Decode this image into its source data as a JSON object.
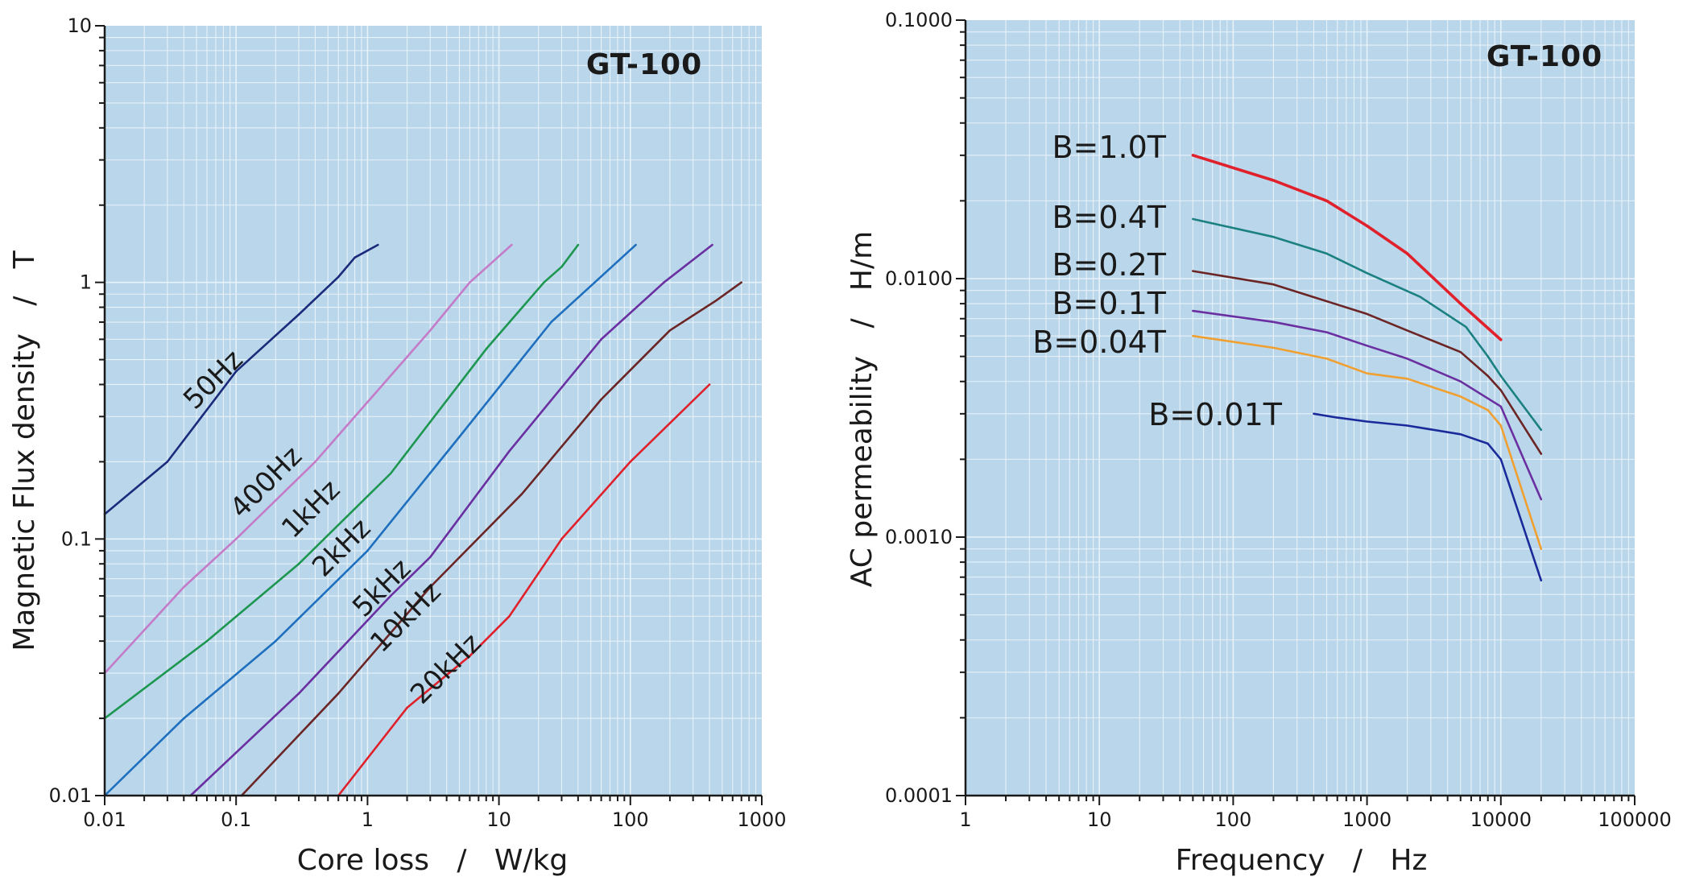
{
  "chart_data": [
    {
      "type": "line",
      "title": "GT-100",
      "xlabel": "Core loss   /   W/kg",
      "ylabel": "Magnetic Flux density   /   T",
      "xscale": "log",
      "yscale": "log",
      "xlim": [
        0.01,
        1000
      ],
      "ylim": [
        0.01,
        10
      ],
      "xticks": [
        "0.01",
        "0.1",
        "1",
        "10",
        "100",
        "1000"
      ],
      "yticks": [
        "0.01",
        "0.1",
        "1",
        "10"
      ],
      "grid": true,
      "series": [
        {
          "name": "50Hz",
          "color": "#1b2a7a",
          "x": [
            0.01,
            0.03,
            0.1,
            0.3,
            0.6,
            0.8,
            1.2
          ],
          "y": [
            0.125,
            0.2,
            0.45,
            0.75,
            1.05,
            1.25,
            1.4
          ]
        },
        {
          "name": "400Hz",
          "color": "#c47bc8",
          "x": [
            0.01,
            0.04,
            0.1,
            0.4,
            1.2,
            3,
            6,
            12.5
          ],
          "y": [
            0.03,
            0.065,
            0.1,
            0.2,
            0.38,
            0.65,
            1.0,
            1.4
          ]
        },
        {
          "name": "1kHz",
          "color": "#1d9650",
          "x": [
            0.01,
            0.06,
            0.3,
            1.5,
            8,
            22,
            30,
            40
          ],
          "y": [
            0.02,
            0.04,
            0.08,
            0.18,
            0.55,
            1.0,
            1.15,
            1.4
          ]
        },
        {
          "name": "2kHz",
          "color": "#1f6fbf",
          "x": [
            0.01,
            0.04,
            0.2,
            1,
            5,
            25,
            110
          ],
          "y": [
            0.01,
            0.02,
            0.04,
            0.09,
            0.25,
            0.7,
            1.4
          ]
        },
        {
          "name": "5kHz",
          "color": "#6a2fa0",
          "x": [
            0.045,
            0.3,
            1.5,
            3,
            12,
            60,
            180,
            420
          ],
          "y": [
            0.01,
            0.025,
            0.06,
            0.085,
            0.22,
            0.6,
            1.0,
            1.4
          ]
        },
        {
          "name": "10kHz",
          "color": "#6b2525",
          "x": [
            0.11,
            0.6,
            3,
            15,
            60,
            200,
            450,
            700
          ],
          "y": [
            0.01,
            0.025,
            0.065,
            0.15,
            0.35,
            0.65,
            0.85,
            1.0
          ]
        },
        {
          "name": "20kHz",
          "color": "#e0202a",
          "x": [
            0.6,
            2,
            6,
            12,
            30,
            100,
            400
          ],
          "y": [
            0.01,
            0.022,
            0.035,
            0.05,
            0.1,
            0.2,
            0.4
          ]
        }
      ],
      "labels": {
        "series_names": [
          "50Hz",
          "400Hz",
          "1kHz",
          "2kHz",
          "5kHz",
          "10kHz",
          "20kHz"
        ]
      }
    },
    {
      "type": "line",
      "title": "GT-100",
      "xlabel": "Frequency   /   Hz",
      "ylabel": "AC permeability   /   H/m",
      "xscale": "log",
      "yscale": "log",
      "xlim": [
        1,
        100000
      ],
      "ylim": [
        0.0001,
        0.1
      ],
      "xticks": [
        "1",
        "10",
        "100",
        "1000",
        "10000",
        "100000"
      ],
      "yticks": [
        "0.0001",
        "0.0010",
        "0.0100",
        "0.1000"
      ],
      "grid": true,
      "series": [
        {
          "name": "B=1.0T",
          "color": "#e0202a",
          "x": [
            50,
            200,
            500,
            1000,
            2000,
            5000,
            10000
          ],
          "y": [
            0.03,
            0.024,
            0.02,
            0.016,
            0.0125,
            0.008,
            0.0058
          ]
        },
        {
          "name": "B=0.4T",
          "color": "#1a8080",
          "x": [
            50,
            200,
            500,
            1000,
            2500,
            5500,
            8000,
            10000,
            20000
          ],
          "y": [
            0.017,
            0.0145,
            0.0125,
            0.0105,
            0.0085,
            0.0065,
            0.005,
            0.0042,
            0.0026
          ]
        },
        {
          "name": "B=0.2T",
          "color": "#6b2525",
          "x": [
            50,
            200,
            1000,
            2000,
            5000,
            8000,
            10000,
            20000
          ],
          "y": [
            0.0107,
            0.0095,
            0.0073,
            0.0063,
            0.0052,
            0.0042,
            0.0037,
            0.0021
          ]
        },
        {
          "name": "B=0.1T",
          "color": "#6a2fa0",
          "x": [
            50,
            200,
            500,
            1000,
            2000,
            5000,
            10000,
            20000
          ],
          "y": [
            0.0075,
            0.0068,
            0.0062,
            0.0055,
            0.0049,
            0.004,
            0.0032,
            0.0014
          ]
        },
        {
          "name": "B=0.04T",
          "color": "#f0a030",
          "x": [
            50,
            200,
            500,
            1000,
            2000,
            5000,
            8000,
            10000,
            20000
          ],
          "y": [
            0.006,
            0.0054,
            0.0049,
            0.0043,
            0.0041,
            0.0035,
            0.0031,
            0.0027,
            0.0009
          ]
        },
        {
          "name": "B=0.01T",
          "color": "#1b2a9a",
          "x": [
            400,
            600,
            1000,
            2000,
            5000,
            8000,
            10000,
            20000
          ],
          "y": [
            0.003,
            0.0029,
            0.0028,
            0.0027,
            0.0025,
            0.0023,
            0.002,
            0.00068
          ]
        }
      ],
      "labels": {
        "series_names": [
          "B=1.0T",
          "B=0.4T",
          "B=0.2T",
          "B=0.1T",
          "B=0.04T",
          "B=0.01T"
        ]
      }
    }
  ],
  "colors": {
    "plot_bg": "#b9d6ea",
    "grid": "#e8f2f9",
    "axis": "#1a1a1a"
  }
}
